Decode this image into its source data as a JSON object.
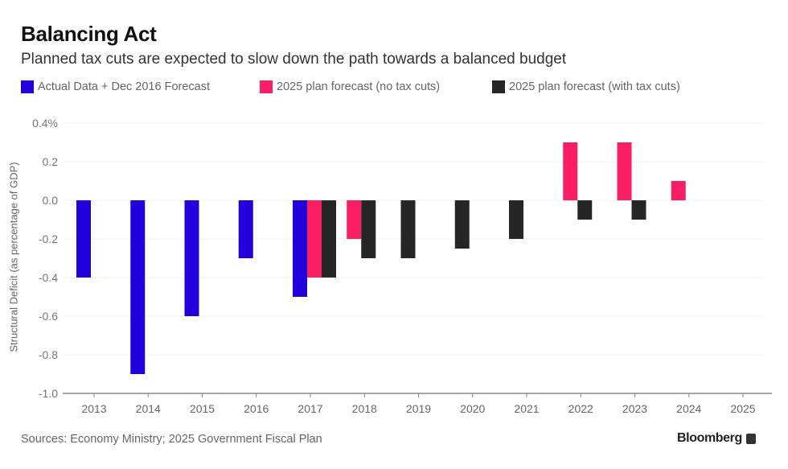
{
  "header": {
    "title": "Balancing Act",
    "subtitle": "Planned tax cuts are expected to slow down the path towards a balanced budget"
  },
  "footer": {
    "source": "Sources: Economy Ministry; 2025 Government Fiscal Plan",
    "brand": "Bloomberg",
    "brand_icon": "bloomberg-logo-icon"
  },
  "colors": {
    "actual": "#2200dd",
    "no_tax_cuts": "#f71e63",
    "with_tax_cuts": "#262626"
  },
  "chart_data": {
    "type": "bar",
    "title": "Balancing Act",
    "subtitle": "Planned tax cuts are expected to slow down the path towards a balanced budget",
    "xlabel": "",
    "ylabel": "Structural Deficit (as percentage of GDP)",
    "ylim": [
      -1.0,
      0.4
    ],
    "yticks": [
      0.4,
      0.2,
      0.0,
      -0.2,
      -0.4,
      -0.6,
      -0.8,
      -1.0
    ],
    "ytick_labels": [
      "0.4%",
      "0.2",
      "0.0",
      "-0.2",
      "-0.4",
      "-0.6",
      "-0.8",
      "-1.0"
    ],
    "grid": true,
    "legend_position": "top-left",
    "categories": [
      "2013",
      "2014",
      "2015",
      "2016",
      "2017",
      "2018",
      "2019",
      "2020",
      "2021",
      "2022",
      "2023",
      "2024",
      "2025"
    ],
    "series": [
      {
        "name": "Actual Data + Dec 2016 Forecast",
        "key": "actual",
        "values": [
          -0.4,
          -0.9,
          -0.6,
          -0.3,
          -0.5,
          null,
          null,
          null,
          null,
          null,
          null,
          null,
          null
        ]
      },
      {
        "name": "2025 plan forecast (no tax cuts)",
        "key": "no_tax_cuts",
        "values": [
          null,
          null,
          null,
          null,
          -0.4,
          -0.2,
          null,
          null,
          null,
          0.3,
          0.3,
          0.1,
          null
        ]
      },
      {
        "name": "2025 plan forecast (with tax cuts)",
        "key": "with_tax_cuts",
        "values": [
          null,
          null,
          null,
          null,
          -0.4,
          -0.3,
          -0.3,
          -0.25,
          -0.2,
          -0.1,
          -0.1,
          null,
          null
        ]
      }
    ]
  }
}
